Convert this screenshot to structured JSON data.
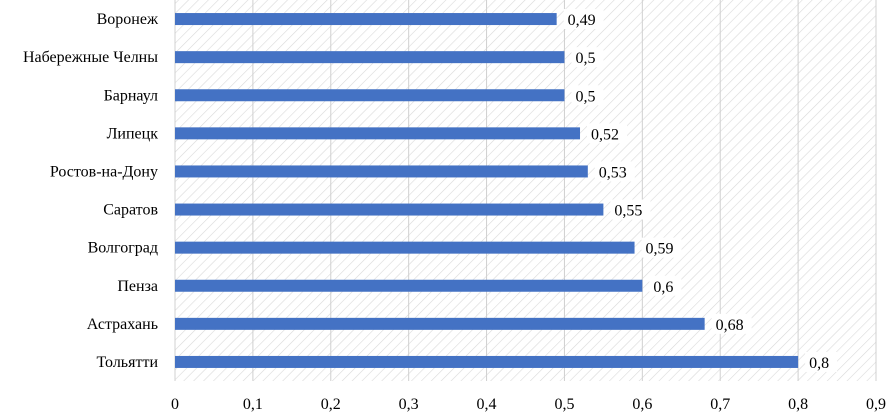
{
  "chart_data": {
    "type": "bar",
    "orientation": "horizontal",
    "categories": [
      "Воронеж",
      "Набережные Челны",
      "Барнаул",
      "Липецк",
      "Ростов-на-Дону",
      "Саратов",
      "Волгоград",
      "Пенза",
      "Астрахань",
      "Тольятти"
    ],
    "values": [
      0.49,
      0.5,
      0.5,
      0.52,
      0.53,
      0.55,
      0.59,
      0.6,
      0.68,
      0.8
    ],
    "data_labels": [
      "0,49",
      "0,5",
      "0,5",
      "0,52",
      "0,53",
      "0,55",
      "0,59",
      "0,6",
      "0,68",
      "0,8"
    ],
    "xticks": [
      0,
      0.1,
      0.2,
      0.3,
      0.4,
      0.5,
      0.6,
      0.7,
      0.8,
      0.9
    ],
    "xtick_labels": [
      "0",
      "0,1",
      "0,2",
      "0,3",
      "0,4",
      "0,5",
      "0,6",
      "0,7",
      "0,8",
      "0,9"
    ],
    "xlim": [
      0,
      0.9
    ],
    "grid": true,
    "title": "",
    "xlabel": "",
    "ylabel": "",
    "colors": {
      "bar": "#4472C4",
      "grid": "#D0D0D0",
      "hatch": "#D9D9D9"
    }
  }
}
